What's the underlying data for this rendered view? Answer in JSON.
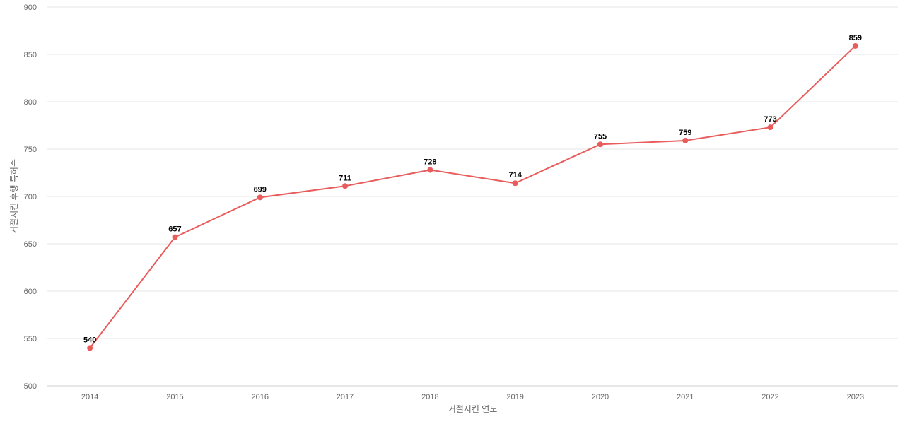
{
  "chart_data": {
    "type": "line",
    "title": "",
    "xlabel": "거절시킨 연도",
    "ylabel": "거절시킨 후행 특허수",
    "categories": [
      "2014",
      "2015",
      "2016",
      "2017",
      "2018",
      "2019",
      "2020",
      "2021",
      "2022",
      "2023"
    ],
    "series": [
      {
        "values": [
          540,
          657,
          699,
          711,
          728,
          714,
          755,
          759,
          773,
          859
        ],
        "color": "#e85c5c"
      }
    ],
    "ylim": [
      500,
      900
    ],
    "yticks": [
      500,
      550,
      600,
      650,
      700,
      750,
      800,
      850,
      900
    ],
    "grid": true,
    "legend": "none",
    "data_labels": true
  }
}
